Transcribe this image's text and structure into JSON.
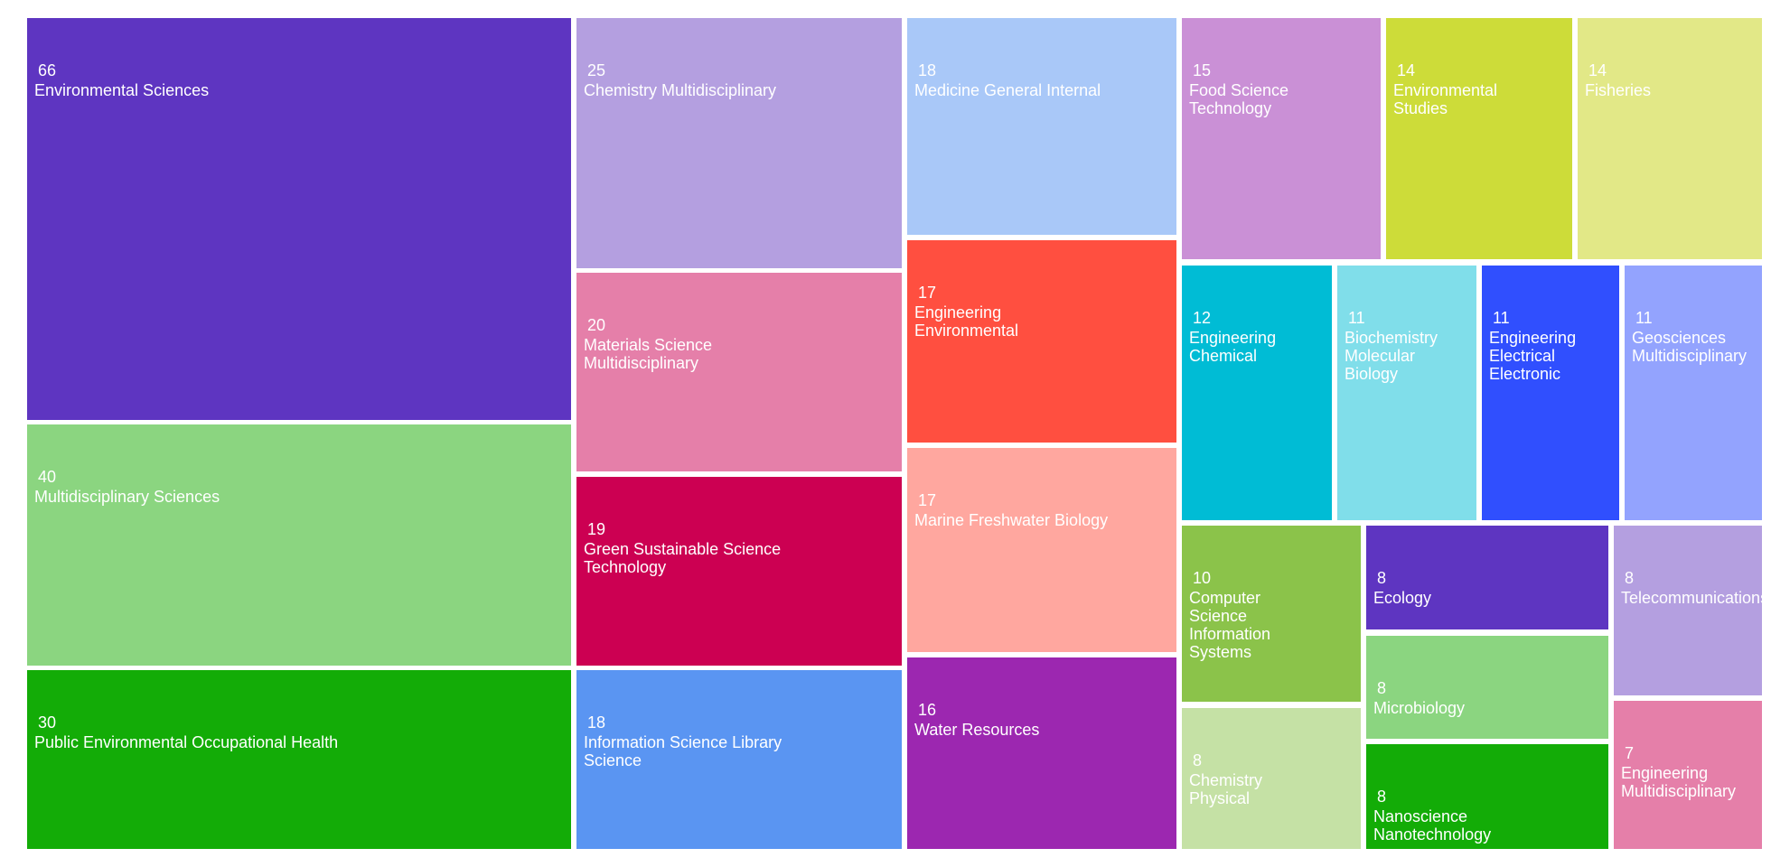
{
  "chart_data": {
    "type": "treemap",
    "items": [
      {
        "label": "Environmental Sciences",
        "value": 66,
        "color": "#5e35c1"
      },
      {
        "label": "Multidisciplinary Sciences",
        "value": 40,
        "color": "#8bd580"
      },
      {
        "label": "Public Environmental Occupational Health",
        "value": 30,
        "color": "#13ac07"
      },
      {
        "label": "Chemistry Multidisciplinary",
        "value": 25,
        "color": "#b49fe0"
      },
      {
        "label": "Materials Science\nMultidisciplinary",
        "value": 20,
        "color": "#e57fa9"
      },
      {
        "label": "Green Sustainable Science\nTechnology",
        "value": 19,
        "color": "#cc0052"
      },
      {
        "label": "Information Science Library\nScience",
        "value": 18,
        "color": "#5a95f2"
      },
      {
        "label": "Medicine General Internal",
        "value": 18,
        "color": "#a9c8f8"
      },
      {
        "label": "Engineering\nEnvironmental",
        "value": 17,
        "color": "#ff4f40"
      },
      {
        "label": "Marine Freshwater Biology",
        "value": 17,
        "color": "#ffa79f"
      },
      {
        "label": "Water Resources",
        "value": 16,
        "color": "#9c27b0"
      },
      {
        "label": "Food Science\nTechnology",
        "value": 15,
        "color": "#ca90d6"
      },
      {
        "label": "Environmental\nStudies",
        "value": 14,
        "color": "#cddc39"
      },
      {
        "label": "Fisheries",
        "value": 14,
        "color": "#e2e887"
      },
      {
        "label": "Engineering\nChemical",
        "value": 12,
        "color": "#00bcd5"
      },
      {
        "label": "Biochemistry\nMolecular\nBiology",
        "value": 11,
        "color": "#80deea"
      },
      {
        "label": "Engineering\nElectrical\nElectronic",
        "value": 11,
        "color": "#304ffe"
      },
      {
        "label": "Geosciences\nMultidisciplinary",
        "value": 11,
        "color": "#93a3fe"
      },
      {
        "label": "Computer\nScience\nInformation\nSystems",
        "value": 10,
        "color": "#8bc34a"
      },
      {
        "label": "Chemistry\nPhysical",
        "value": 8,
        "color": "#c5e1a5"
      },
      {
        "label": "Ecology",
        "value": 8,
        "color": "#5e35c1"
      },
      {
        "label": "Microbiology",
        "value": 8,
        "color": "#8bd580"
      },
      {
        "label": "Nanoscience\nNanotechnology",
        "value": 8,
        "color": "#13ac07"
      },
      {
        "label": "Telecommunications",
        "value": 8,
        "color": "#b49fe0"
      },
      {
        "label": "Engineering\nMultidisciplinary",
        "value": 7,
        "color": "#e57fa9"
      }
    ]
  }
}
